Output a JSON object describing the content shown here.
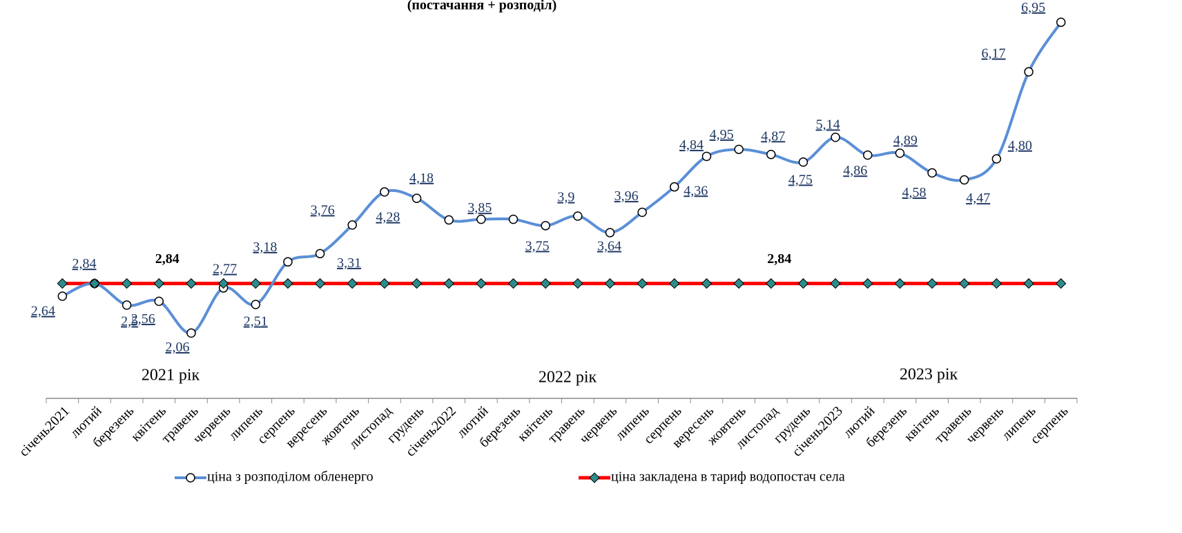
{
  "chart_data": {
    "type": "line",
    "title": "(постачання + розподіл)",
    "categories": [
      "січень2021",
      "лютий",
      "березень",
      "квітень",
      "травень",
      "червень",
      "липень",
      "серпень",
      "вересень",
      "жовтень",
      "листопад",
      "грудень",
      "січень2022",
      "лютий",
      "березень",
      "квітень",
      "травень",
      "червень",
      "липень",
      "серпень",
      "вересень",
      "жовтень",
      "листопад",
      "грудень",
      "січень2023",
      "лютий",
      "березень",
      "квітень",
      "травень",
      "червень",
      "липень",
      "серпень"
    ],
    "series": [
      {
        "name": "ціна з розподілом обленерго",
        "color": "#5b8fd6",
        "values": [
          2.64,
          2.84,
          2.5,
          2.56,
          2.06,
          2.77,
          2.51,
          3.18,
          3.31,
          3.76,
          4.28,
          4.18,
          3.84,
          3.85,
          3.85,
          3.75,
          3.9,
          3.64,
          3.96,
          4.36,
          4.84,
          4.95,
          4.87,
          4.75,
          5.14,
          4.86,
          4.89,
          4.58,
          4.47,
          4.8,
          6.17,
          6.95
        ],
        "value_labels": [
          "2,64",
          "2,84",
          "2,5",
          "2,56",
          "2,06",
          "2,77",
          "2,51",
          "3,18",
          "3,31",
          "3,76",
          "4,28",
          "4,18",
          null,
          "3,85",
          null,
          "3,75",
          "3,9",
          "3,64",
          "3,96",
          "4,36",
          "4,84",
          "4,95",
          "4,87",
          "4,75",
          "5,14",
          "4,86",
          "4,89",
          "4,58",
          "4,47",
          "4,80",
          "6,17",
          "6,95"
        ]
      },
      {
        "name": "ціна закладена в тариф водопостач села",
        "color": "#ff0000",
        "values": [
          2.84,
          2.84,
          2.84,
          2.84,
          2.84,
          2.84,
          2.84,
          2.84,
          2.84,
          2.84,
          2.84,
          2.84,
          2.84,
          2.84,
          2.84,
          2.84,
          2.84,
          2.84,
          2.84,
          2.84,
          2.84,
          2.84,
          2.84,
          2.84,
          2.84,
          2.84,
          2.84,
          2.84,
          2.84,
          2.84,
          2.84,
          2.84
        ],
        "value_labels": [
          null,
          null,
          null,
          "2,84",
          null,
          null,
          null,
          null,
          null,
          null,
          null,
          null,
          null,
          null,
          null,
          null,
          null,
          null,
          null,
          null,
          null,
          null,
          "2,84",
          null,
          null,
          null,
          null,
          null,
          null,
          null,
          null,
          null
        ]
      }
    ],
    "annotations": [
      "2021 рік",
      "2022 рік",
      "2023 рік"
    ],
    "ylim": [
      1,
      7.3
    ]
  }
}
